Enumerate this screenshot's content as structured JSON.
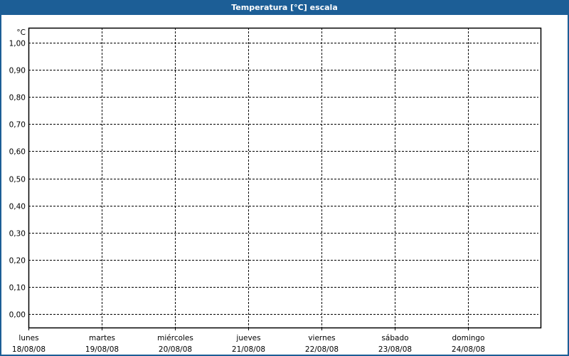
{
  "window": {
    "title": "Temperatura [°C] escala"
  },
  "chart_data": {
    "type": "line",
    "title": "Temperatura [°C] escala",
    "ylabel": "°C",
    "ylim": [
      0,
      1
    ],
    "yticks": [
      0,
      0.1,
      0.2,
      0.3,
      0.4,
      0.5,
      0.6,
      0.7,
      0.8,
      0.9,
      1.0
    ],
    "ytick_labels": [
      "0,00",
      "0,10",
      "0,20",
      "0,30",
      "0,40",
      "0,50",
      "0,60",
      "0,70",
      "0,80",
      "0,90",
      "1,00"
    ],
    "x_categories": [
      {
        "day": "lunes",
        "date": "18/08/08"
      },
      {
        "day": "martes",
        "date": "19/08/08"
      },
      {
        "day": "miércoles",
        "date": "20/08/08"
      },
      {
        "day": "jueves",
        "date": "21/08/08"
      },
      {
        "day": "viernes",
        "date": "22/08/08"
      },
      {
        "day": "sábado",
        "date": "23/08/08"
      },
      {
        "day": "domingo",
        "date": "24/08/08"
      }
    ],
    "series": [],
    "grid": true,
    "grid_style": "dashed",
    "colors": {
      "titlebar": "#1c5e96",
      "grid": "#000000"
    }
  }
}
